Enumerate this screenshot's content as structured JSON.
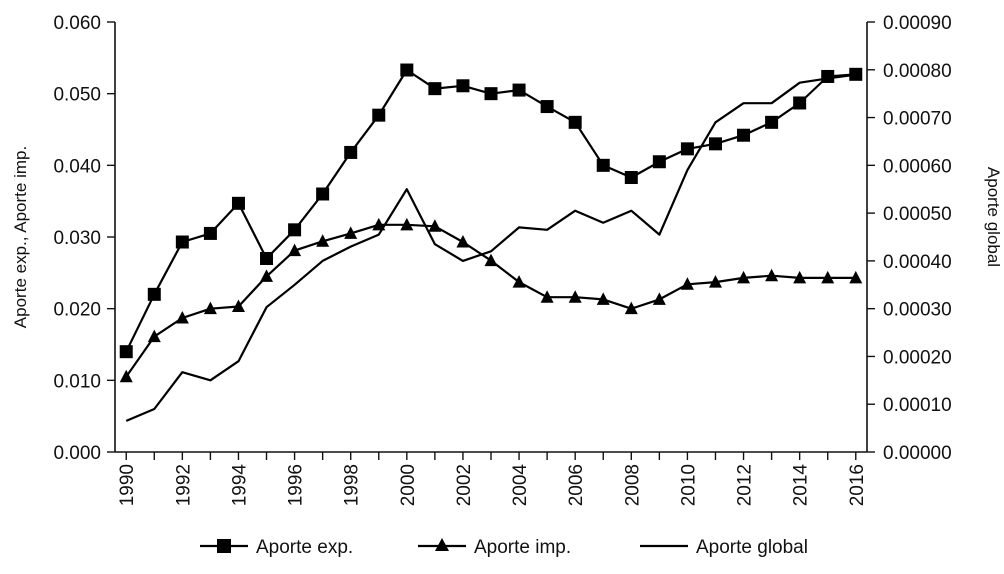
{
  "chart_data": {
    "type": "line",
    "title": "",
    "x": [
      1990,
      1991,
      1992,
      1993,
      1994,
      1995,
      1996,
      1997,
      1998,
      1999,
      2000,
      2001,
      2002,
      2003,
      2004,
      2005,
      2006,
      2007,
      2008,
      2009,
      2010,
      2011,
      2012,
      2013,
      2014,
      2015,
      2016
    ],
    "xticks": [
      "1990",
      "1992",
      "1994",
      "1996",
      "1998",
      "2000",
      "2002",
      "2004",
      "2006",
      "2008",
      "2010",
      "2012",
      "2014",
      "2016"
    ],
    "xlim": [
      1989.6,
      2016.4
    ],
    "left_axis": {
      "label": "Aporte exp., Aporte imp.",
      "ylim": [
        0,
        0.06
      ],
      "ticks": [
        "0.000",
        "0.010",
        "0.020",
        "0.030",
        "0.040",
        "0.050",
        "0.060"
      ]
    },
    "right_axis": {
      "label": "Aporte global",
      "ylim": [
        0,
        0.0009
      ],
      "ticks": [
        "0.00000",
        "0.00010",
        "0.00020",
        "0.00030",
        "0.00040",
        "0.00050",
        "0.00060",
        "0.00070",
        "0.00080",
        "0.00090"
      ]
    },
    "series": [
      {
        "name": "Aporte exp.",
        "axis": "left",
        "marker": "square",
        "values": [
          0.014,
          0.022,
          0.0293,
          0.0305,
          0.0347,
          0.027,
          0.031,
          0.036,
          0.0418,
          0.047,
          0.0533,
          0.0507,
          0.0511,
          0.05,
          0.0505,
          0.0482,
          0.046,
          0.04,
          0.0383,
          0.0405,
          0.0423,
          0.043,
          0.0442,
          0.046,
          0.0487,
          0.0524,
          0.0527
        ]
      },
      {
        "name": "Aporte imp.",
        "axis": "left",
        "marker": "triangle",
        "values": [
          0.0105,
          0.0161,
          0.0187,
          0.02,
          0.0203,
          0.0245,
          0.0281,
          0.0294,
          0.0305,
          0.0317,
          0.0317,
          0.0315,
          0.0293,
          0.0267,
          0.0237,
          0.0216,
          0.0216,
          0.0213,
          0.02,
          0.0213,
          0.0234,
          0.0237,
          0.0243,
          0.0246,
          0.0243,
          0.0243,
          0.0243
        ]
      },
      {
        "name": "Aporte global",
        "axis": "right",
        "marker": "none",
        "values": [
          6.5e-05,
          9e-05,
          0.000167,
          0.00015,
          0.00019,
          0.000303,
          0.00035,
          0.0004,
          0.00043,
          0.000455,
          0.00055,
          0.000435,
          0.0004,
          0.00042,
          0.00047,
          0.000465,
          0.000505,
          0.00048,
          0.000505,
          0.000455,
          0.00059,
          0.00069,
          0.00073,
          0.00073,
          0.000773,
          0.000782,
          0.00079
        ]
      }
    ],
    "legend": {
      "position": "bottom"
    }
  }
}
